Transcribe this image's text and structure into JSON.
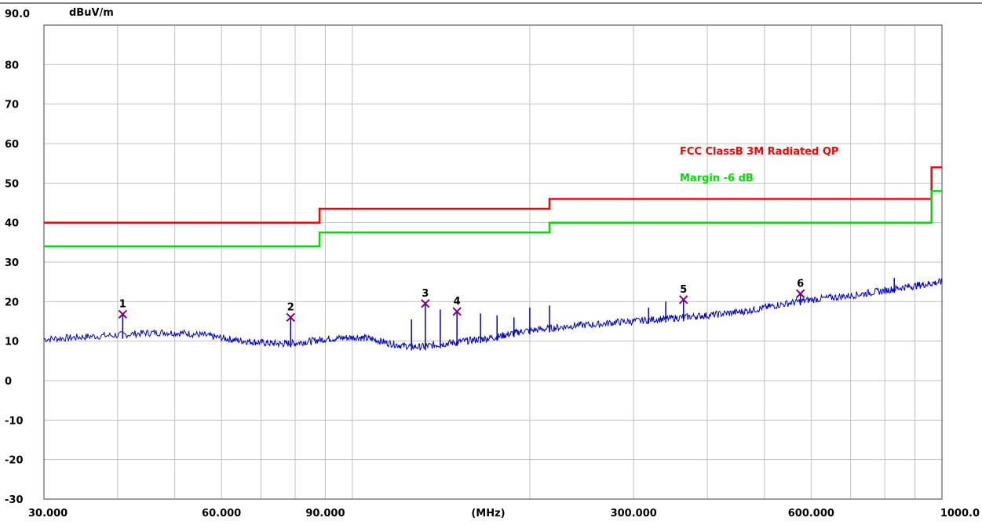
{
  "chart_data": {
    "type": "line",
    "title": "",
    "unit_label": "dBuV/m",
    "xlabel": "(MHz)",
    "x_scale": "log",
    "xlim": [
      30,
      1000
    ],
    "ylim": [
      -30,
      90
    ],
    "y_top_label": "90.0",
    "y_ticks": [
      "80",
      "70",
      "60",
      "50",
      "40",
      "30",
      "20",
      "10",
      "0",
      "-10",
      "-20",
      "-30"
    ],
    "y_tick_values": [
      80,
      70,
      60,
      50,
      40,
      30,
      20,
      10,
      0,
      -10,
      -20,
      -30
    ],
    "x_tick_labels": [
      "30.000",
      "60.000",
      "90.000",
      "300.000",
      "600.000",
      "1000.0"
    ],
    "x_tick_values": [
      30,
      60,
      90,
      300,
      600,
      1000
    ],
    "grid": true,
    "legend_position": "upper-right",
    "series": [
      {
        "name": "FCC  ClassB 3M Radiated QP",
        "color": "#ff0000",
        "step": true,
        "x": [
          30,
          88,
          88,
          216,
          216,
          960,
          960,
          1000
        ],
        "y": [
          40,
          40,
          43.5,
          43.5,
          46,
          46,
          54,
          54
        ]
      },
      {
        "name": "Margin -6 dB",
        "color": "#00dd00",
        "step": true,
        "x": [
          30,
          88,
          88,
          216,
          216,
          960,
          960,
          1000
        ],
        "y": [
          34,
          34,
          37.5,
          37.5,
          40,
          40,
          48,
          48
        ]
      },
      {
        "color": "#0000cc",
        "x": [
          30,
          33,
          36,
          40,
          44,
          48,
          52,
          56,
          60,
          64,
          68,
          72,
          76,
          80,
          85,
          90,
          96,
          102,
          108,
          115,
          122,
          130,
          138,
          146,
          155,
          165,
          175,
          185,
          195,
          210,
          225,
          240,
          260,
          280,
          300,
          325,
          350,
          375,
          400,
          430,
          460,
          490,
          520,
          560,
          600,
          650,
          700,
          750,
          800,
          850,
          900,
          950,
          1000
        ],
        "y": [
          10.5,
          10.8,
          11.2,
          11.5,
          12.0,
          12.2,
          12.0,
          11.5,
          10.8,
          10.2,
          9.8,
          9.5,
          9.3,
          9.5,
          10.0,
          10.5,
          10.8,
          11.0,
          10.5,
          9.5,
          8.8,
          8.5,
          9.0,
          9.5,
          10.0,
          10.5,
          11.0,
          11.8,
          12.5,
          13.0,
          13.5,
          14.0,
          14.2,
          14.8,
          15.0,
          15.5,
          15.8,
          16.2,
          16.5,
          17.0,
          17.5,
          18.2,
          19.0,
          19.8,
          20.5,
          21.0,
          21.5,
          22.2,
          22.8,
          23.5,
          24.0,
          24.5,
          25.0
        ],
        "spikes": [
          {
            "x": 40.8,
            "y": 16.8
          },
          {
            "x": 78.6,
            "y": 16.0
          },
          {
            "x": 126,
            "y": 15.5
          },
          {
            "x": 133,
            "y": 19.5
          },
          {
            "x": 141,
            "y": 18.0
          },
          {
            "x": 150.5,
            "y": 17.5
          },
          {
            "x": 165,
            "y": 17.0
          },
          {
            "x": 176,
            "y": 16.5
          },
          {
            "x": 188,
            "y": 16.0
          },
          {
            "x": 200,
            "y": 18.5
          },
          {
            "x": 216,
            "y": 19.0
          },
          {
            "x": 318,
            "y": 18.5
          },
          {
            "x": 340,
            "y": 20.0
          },
          {
            "x": 364.5,
            "y": 20.5
          },
          {
            "x": 575.4,
            "y": 22.0
          },
          {
            "x": 830,
            "y": 26.0
          }
        ]
      }
    ],
    "markers": [
      {
        "label": "1",
        "x": 40.8,
        "y": 16.8
      },
      {
        "label": "2",
        "x": 78.6,
        "y": 16.0
      },
      {
        "label": "3",
        "x": 133.0,
        "y": 19.5
      },
      {
        "label": "4",
        "x": 150.5,
        "y": 17.5
      },
      {
        "label": "5",
        "x": 364.5,
        "y": 20.5
      },
      {
        "label": "6",
        "x": 575.4,
        "y": 22.0
      }
    ],
    "colors": {
      "grid": "#c0c0c0",
      "axis": "#808080",
      "marker": "#800080",
      "text": "#000000"
    }
  }
}
